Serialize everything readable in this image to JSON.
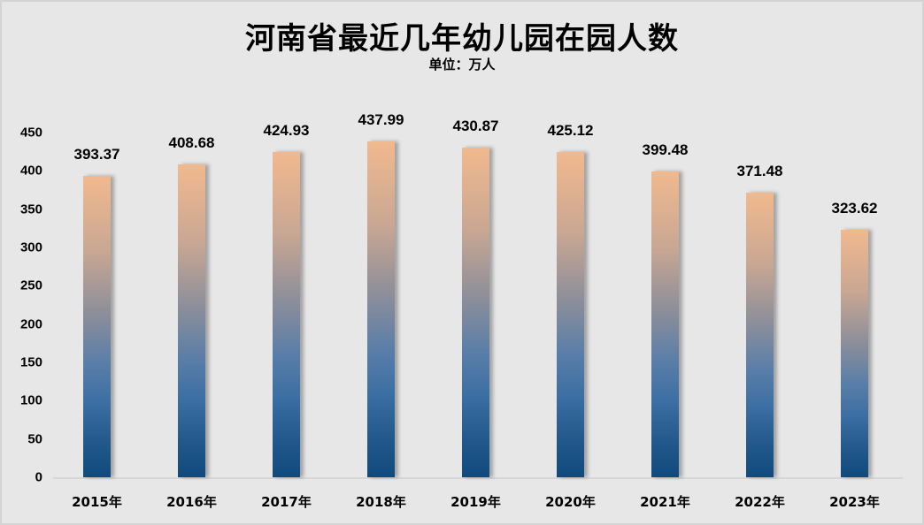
{
  "title": "河南省最近几年幼儿园在园人数",
  "subtitle": "单位：万人",
  "colors": {
    "background": "#e7e7e7",
    "bar_top": "#f1b98e",
    "bar_mid": "#8e8f9a",
    "bar_bottom": "#104a7c"
  },
  "chart_data": {
    "type": "bar",
    "title": "河南省最近几年幼儿园在园人数",
    "subtitle": "单位：万人",
    "xlabel": "",
    "ylabel": "",
    "categories": [
      "2015年",
      "2016年",
      "2017年",
      "2018年",
      "2019年",
      "2020年",
      "2021年",
      "2022年",
      "2023年"
    ],
    "values": [
      393.37,
      408.68,
      424.93,
      437.99,
      430.87,
      425.12,
      399.48,
      371.48,
      323.62
    ],
    "value_labels": [
      "393.37",
      "408.68",
      "424.93",
      "437.99",
      "430.87",
      "425.12",
      "399.48",
      "371.48",
      "323.62"
    ],
    "yticks": [
      "0",
      "50",
      "100",
      "150",
      "200",
      "250",
      "300",
      "350",
      "400",
      "450"
    ],
    "ylim": [
      0,
      450
    ],
    "grid": false,
    "legend": "none",
    "data_labels": true
  }
}
